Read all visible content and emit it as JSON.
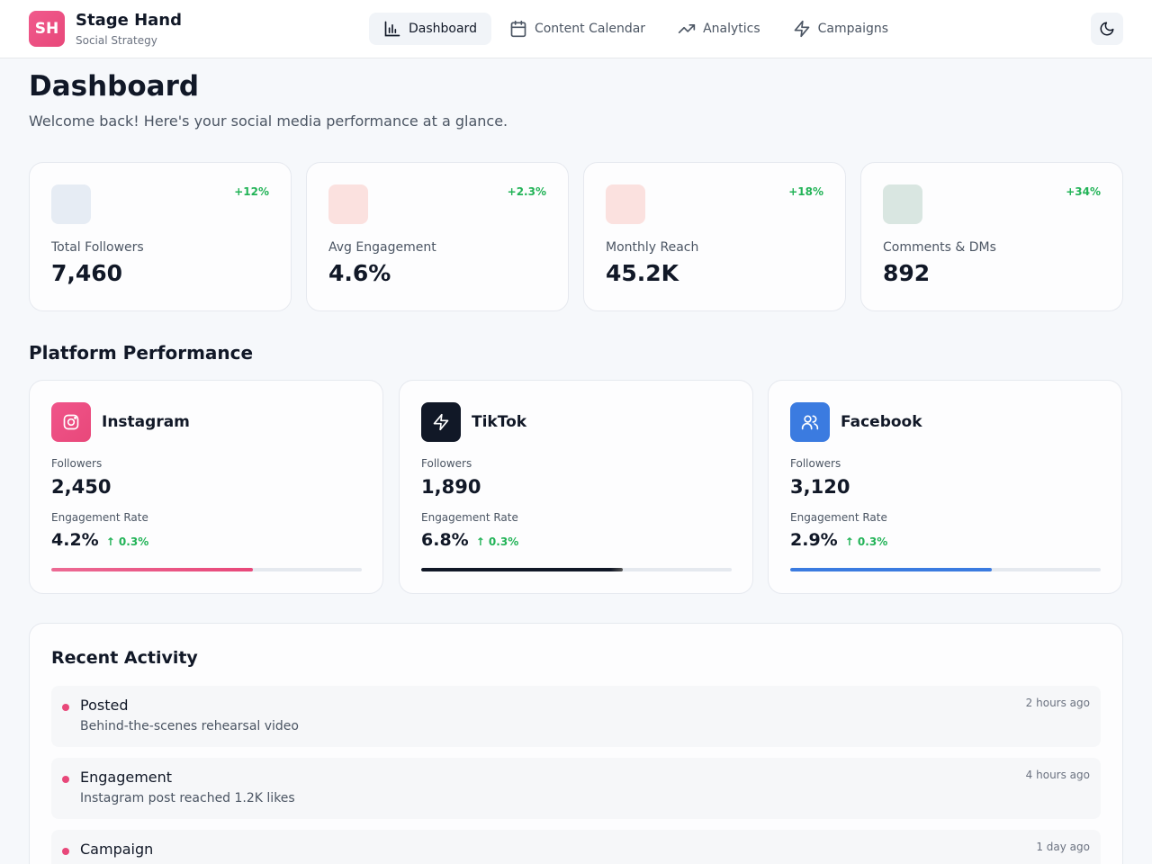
{
  "brand": {
    "initials": "SH",
    "title": "Stage Hand",
    "subtitle": "Social Strategy"
  },
  "nav": [
    {
      "label": "Dashboard",
      "icon": "bar-chart-icon",
      "active": true
    },
    {
      "label": "Content Calendar",
      "icon": "calendar-icon",
      "active": false
    },
    {
      "label": "Analytics",
      "icon": "trending-up-icon",
      "active": false
    },
    {
      "label": "Campaigns",
      "icon": "zap-icon",
      "active": false
    }
  ],
  "theme_toggle": {
    "icon": "moon-icon"
  },
  "page": {
    "title": "Dashboard",
    "subtitle": "Welcome back! Here's your social media performance at a glance."
  },
  "stats": [
    {
      "label": "Total Followers",
      "value": "7,460",
      "change": "+12%",
      "color": "#e6ecf4"
    },
    {
      "label": "Avg Engagement",
      "value": "4.6%",
      "change": "+2.3%",
      "color": "#fbe1df"
    },
    {
      "label": "Monthly Reach",
      "value": "45.2K",
      "change": "+18%",
      "color": "#fbe1df"
    },
    {
      "label": "Comments & DMs",
      "value": "892",
      "change": "+34%",
      "color": "#d9e6e1"
    }
  ],
  "platform_section": {
    "title": "Platform Performance"
  },
  "platforms": [
    {
      "name": "Instagram",
      "icon": "instagram-icon",
      "followers_label": "Followers",
      "followers": "2,450",
      "engagement_label": "Engagement Rate",
      "engagement": "4.2%",
      "delta": "↑ 0.3%",
      "progress": 0.65,
      "color": "#ec4f82"
    },
    {
      "name": "TikTok",
      "icon": "zap-icon",
      "followers_label": "Followers",
      "followers": "1,890",
      "engagement_label": "Engagement Rate",
      "engagement": "6.8%",
      "delta": "↑ 0.3%",
      "progress": 0.65,
      "color": "#111827"
    },
    {
      "name": "Facebook",
      "icon": "users-icon",
      "followers_label": "Followers",
      "followers": "3,120",
      "engagement_label": "Engagement Rate",
      "engagement": "2.9%",
      "delta": "↑ 0.3%",
      "progress": 0.65,
      "color": "#3b7be0"
    }
  ],
  "activity": {
    "title": "Recent Activity",
    "items": [
      {
        "type": "Posted",
        "description": "Behind-the-scenes rehearsal video",
        "time": "2 hours ago"
      },
      {
        "type": "Engagement",
        "description": "Instagram post reached 1.2K likes",
        "time": "4 hours ago"
      },
      {
        "type": "Campaign",
        "description": "",
        "time": "1 day ago"
      }
    ]
  }
}
